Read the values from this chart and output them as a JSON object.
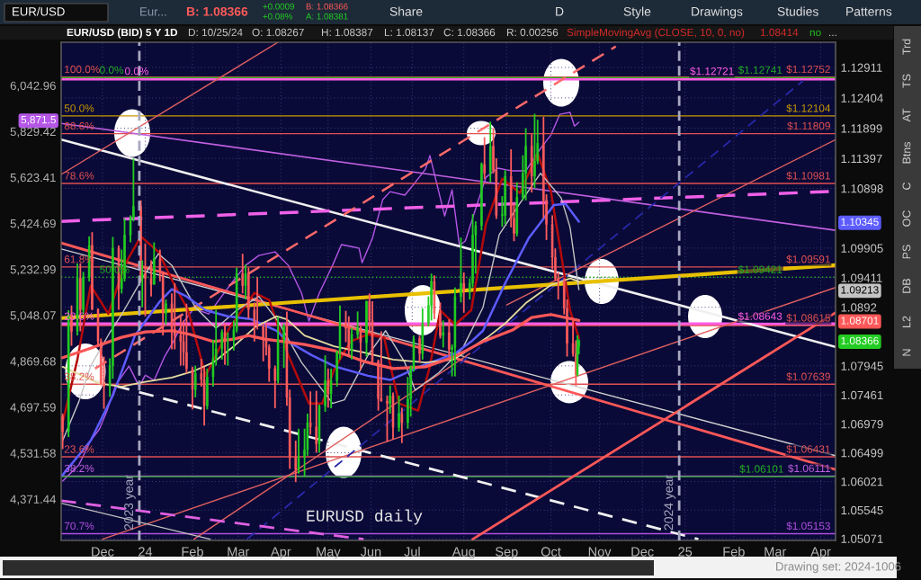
{
  "chart_data": {
    "type": "candlestick",
    "title": "EUR/USD (BID) 5 Y 1D",
    "xlim": [
      "2023-11-09",
      "2025-04-17"
    ],
    "xticks": [
      {
        "value": "2023-12-07",
        "label": "Dec"
      },
      {
        "value": "2024-01-05",
        "label": "24"
      },
      {
        "value": "2024-02-06",
        "label": "Feb"
      },
      {
        "value": "2024-03-08",
        "label": "Mar"
      },
      {
        "value": "2024-04-06",
        "label": "Apr"
      },
      {
        "value": "2024-05-08",
        "label": "May"
      },
      {
        "value": "2024-06-06",
        "label": "Jun"
      },
      {
        "value": "2024-07-04",
        "label": "Jul"
      },
      {
        "value": "2024-08-08",
        "label": "Aug"
      },
      {
        "value": "2024-09-06",
        "label": "Sep"
      },
      {
        "value": "2024-10-06",
        "label": "Oct"
      },
      {
        "value": "2024-11-08",
        "label": "Nov"
      },
      {
        "value": "2024-12-07",
        "label": "Dec"
      },
      {
        "value": "2025-01-05",
        "label": "25"
      },
      {
        "value": "2025-02-07",
        "label": "Feb"
      },
      {
        "value": "2025-03-07",
        "label": "Mar"
      },
      {
        "value": "2025-04-07",
        "label": "Apr"
      }
    ],
    "ylim": [
      1.0504,
      1.1333
    ],
    "yticks": [
      1.12911,
      1.12404,
      1.11899,
      1.11397,
      1.10898,
      1.10345,
      1.09905,
      1.09411,
      1.09213,
      1.0892,
      1.08701,
      1.08366,
      1.07945,
      1.07461,
      1.06979,
      1.06499,
      1.06021,
      1.05545,
      1.05071
    ],
    "y2lim": [
      4232,
      6251
    ],
    "y2ticks": [
      {
        "value": 6042.96,
        "label": "6,042.96"
      },
      {
        "value": 5871.5,
        "label": "5,871.5"
      },
      {
        "value": 5829.42,
        "label": "5,829.42"
      },
      {
        "value": 5623.41,
        "label": "5,623.41"
      },
      {
        "value": 5424.69,
        "label": "5,424.69"
      },
      {
        "value": 5232.99,
        "label": "5,232.99"
      },
      {
        "value": 5048.07,
        "label": "5,048.07"
      },
      {
        "value": 4869.68,
        "label": "4,869.68"
      },
      {
        "value": 4697.59,
        "label": "4,697.59"
      },
      {
        "value": 4531.58,
        "label": "4,531.58"
      },
      {
        "value": 4371.44,
        "label": "4,371.44"
      }
    ],
    "log": "y2",
    "grid": true,
    "series": [
      {
        "x": [
          "2023-11-10",
          "2023-11-14",
          "2023-11-16",
          "2023-11-20",
          "2023-11-22",
          "2023-11-24",
          "2023-11-28",
          "2023-11-30",
          "2023-12-04",
          "2023-12-06",
          "2023-12-08",
          "2023-12-12",
          "2023-12-14",
          "2023-12-18",
          "2023-12-20",
          "2023-12-22",
          "2023-12-26",
          "2023-12-28",
          "2024-01-02",
          "2024-01-03",
          "2024-01-05",
          "2024-01-09",
          "2024-01-11",
          "2024-01-15",
          "2024-01-17",
          "2024-01-19",
          "2024-01-23",
          "2024-01-25",
          "2024-01-29",
          "2024-01-31",
          "2024-02-02",
          "2024-02-06",
          "2024-02-08",
          "2024-02-12",
          "2024-02-14",
          "2024-02-16",
          "2024-02-20",
          "2024-02-22",
          "2024-02-26",
          "2024-02-28",
          "2024-03-01",
          "2024-03-05",
          "2024-03-07",
          "2024-03-11",
          "2024-03-13",
          "2024-03-15",
          "2024-03-19",
          "2024-03-21",
          "2024-03-25",
          "2024-03-27",
          "2024-03-29",
          "2024-04-02",
          "2024-04-04",
          "2024-04-08",
          "2024-04-10",
          "2024-04-12",
          "2024-04-16",
          "2024-04-18",
          "2024-04-22",
          "2024-04-24",
          "2024-04-26",
          "2024-04-30",
          "2024-05-02",
          "2024-05-06",
          "2024-05-08",
          "2024-05-10",
          "2024-05-14",
          "2024-05-16",
          "2024-05-20",
          "2024-05-22",
          "2024-05-24",
          "2024-05-28",
          "2024-05-30",
          "2024-06-03",
          "2024-06-05",
          "2024-06-07",
          "2024-06-11",
          "2024-06-13",
          "2024-06-17",
          "2024-06-19",
          "2024-06-21",
          "2024-06-25",
          "2024-06-27",
          "2024-07-01",
          "2024-07-03",
          "2024-07-05",
          "2024-07-09",
          "2024-07-11",
          "2024-07-15",
          "2024-07-17",
          "2024-07-19",
          "2024-07-23",
          "2024-07-25",
          "2024-07-29",
          "2024-07-31",
          "2024-08-02",
          "2024-08-06",
          "2024-08-08",
          "2024-08-12",
          "2024-08-14",
          "2024-08-16",
          "2024-08-20",
          "2024-08-22",
          "2024-08-26",
          "2024-08-28",
          "2024-08-30",
          "2024-09-03",
          "2024-09-05",
          "2024-09-09",
          "2024-09-11",
          "2024-09-13",
          "2024-09-17",
          "2024-09-19",
          "2024-09-23",
          "2024-09-25",
          "2024-09-27",
          "2024-10-01",
          "2024-10-03",
          "2024-10-07",
          "2024-10-09",
          "2024-10-11",
          "2024-10-15",
          "2024-10-17",
          "2024-10-21",
          "2024-10-23",
          "2024-10-24",
          "2024-10-25"
        ],
        "ohlc": [
          [
            1.071,
            1.0715,
            1.0656,
            1.0685
          ],
          [
            1.0685,
            1.0887,
            1.0676,
            1.088
          ],
          [
            1.088,
            1.0895,
            1.0828,
            1.0852
          ],
          [
            1.0852,
            1.0965,
            1.0845,
            1.094
          ],
          [
            1.094,
            1.0965,
            1.0852,
            1.0888
          ],
          [
            1.0888,
            1.0951,
            1.088,
            1.0942
          ],
          [
            1.0942,
            1.101,
            1.0935,
            1.0995
          ],
          [
            1.0995,
            1.1017,
            1.0887,
            1.0889
          ],
          [
            1.0889,
            1.089,
            1.083,
            1.0835
          ],
          [
            1.0835,
            1.084,
            1.0762,
            1.0764
          ],
          [
            1.0764,
            1.081,
            1.0723,
            1.076
          ],
          [
            1.076,
            1.0807,
            1.0743,
            1.0795
          ],
          [
            1.0795,
            1.1009,
            1.0773,
            1.099
          ],
          [
            1.099,
            1.0995,
            1.0888,
            1.0923
          ],
          [
            1.0923,
            1.0988,
            1.0915,
            1.094
          ],
          [
            1.094,
            1.104,
            1.0935,
            1.1012
          ],
          [
            1.1012,
            1.1045,
            1.1,
            1.1041
          ],
          [
            1.1041,
            1.1139,
            1.1035,
            1.106
          ],
          [
            1.106,
            1.107,
            1.0935,
            1.094
          ],
          [
            1.094,
            1.097,
            1.0892,
            1.0948
          ],
          [
            1.0948,
            1.0998,
            1.0877,
            1.094
          ],
          [
            1.094,
            1.097,
            1.091,
            1.093
          ],
          [
            1.093,
            1.1,
            1.093,
            1.0973
          ],
          [
            1.0973,
            1.0988,
            1.0935,
            1.095
          ],
          [
            1.095,
            1.0952,
            1.0845,
            1.0882
          ],
          [
            1.0882,
            1.0905,
            1.0863,
            1.0898
          ],
          [
            1.0898,
            1.0915,
            1.0822,
            1.0856
          ],
          [
            1.0856,
            1.0932,
            1.0822,
            1.0845
          ],
          [
            1.0845,
            1.0877,
            1.0795,
            1.0835
          ],
          [
            1.0835,
            1.087,
            1.0795,
            1.0817
          ],
          [
            1.0817,
            1.0898,
            1.0782,
            1.079
          ],
          [
            1.079,
            1.0793,
            1.0722,
            1.0755
          ],
          [
            1.0755,
            1.0795,
            1.0742,
            1.0782
          ],
          [
            1.0782,
            1.0806,
            1.076,
            1.0772
          ],
          [
            1.0772,
            1.0793,
            1.0695,
            1.0728
          ],
          [
            1.0728,
            1.079,
            1.0722,
            1.0776
          ],
          [
            1.0776,
            1.0838,
            1.076,
            1.0808
          ],
          [
            1.0808,
            1.0888,
            1.0795,
            1.0823
          ],
          [
            1.0823,
            1.0855,
            1.0805,
            1.085
          ],
          [
            1.085,
            1.0865,
            1.0796,
            1.0838
          ],
          [
            1.0838,
            1.085,
            1.0795,
            1.0838
          ],
          [
            1.0838,
            1.087,
            1.082,
            1.0855
          ],
          [
            1.0855,
            1.0958,
            1.085,
            1.0948
          ],
          [
            1.0948,
            1.0981,
            1.0915,
            1.0928
          ],
          [
            1.0928,
            1.0963,
            1.0905,
            1.0948
          ],
          [
            1.0948,
            1.0958,
            1.0873,
            1.0888
          ],
          [
            1.0888,
            1.09,
            1.0835,
            1.0865
          ],
          [
            1.0865,
            1.0942,
            1.0855,
            1.086
          ],
          [
            1.086,
            1.0865,
            1.0802,
            1.0838
          ],
          [
            1.0838,
            1.0865,
            1.0812,
            1.0825
          ],
          [
            1.0825,
            1.083,
            1.0768,
            1.079
          ],
          [
            1.079,
            1.0795,
            1.0724,
            1.077
          ],
          [
            1.077,
            1.0876,
            1.0765,
            1.0838
          ],
          [
            1.0838,
            1.0865,
            1.0791,
            1.086
          ],
          [
            1.086,
            1.0885,
            1.0728,
            1.0742
          ],
          [
            1.0742,
            1.0755,
            1.0623,
            1.0642
          ],
          [
            1.0642,
            1.067,
            1.0601,
            1.0622
          ],
          [
            1.0622,
            1.069,
            1.0615,
            1.0643
          ],
          [
            1.0643,
            1.069,
            1.061,
            1.0655
          ],
          [
            1.0655,
            1.0715,
            1.0645,
            1.07
          ],
          [
            1.07,
            1.0752,
            1.068,
            1.0693
          ],
          [
            1.0693,
            1.0753,
            1.065,
            1.0665
          ],
          [
            1.0665,
            1.073,
            1.065,
            1.0728
          ],
          [
            1.0728,
            1.0812,
            1.0718,
            1.077
          ],
          [
            1.077,
            1.079,
            1.0725,
            1.0748
          ],
          [
            1.0748,
            1.079,
            1.0724,
            1.077
          ],
          [
            1.077,
            1.082,
            1.076,
            1.0818
          ],
          [
            1.0818,
            1.0895,
            1.0805,
            1.0866
          ],
          [
            1.0866,
            1.0886,
            1.0834,
            1.0857
          ],
          [
            1.0857,
            1.0877,
            1.0812,
            1.082
          ],
          [
            1.082,
            1.0858,
            1.0805,
            1.0847
          ],
          [
            1.0847,
            1.0885,
            1.084,
            1.0857
          ],
          [
            1.0857,
            1.086,
            1.0788,
            1.0833
          ],
          [
            1.0833,
            1.0903,
            1.081,
            1.0902
          ],
          [
            1.0902,
            1.0915,
            1.085,
            1.087
          ],
          [
            1.087,
            1.0902,
            1.08,
            1.0802
          ],
          [
            1.0802,
            1.0805,
            1.072,
            1.074
          ],
          [
            1.074,
            1.0852,
            1.0735,
            1.0736
          ],
          [
            1.0736,
            1.0745,
            1.0668,
            1.0732
          ],
          [
            1.0732,
            1.0762,
            1.0715,
            1.0745
          ],
          [
            1.0745,
            1.075,
            1.0672,
            1.0692
          ],
          [
            1.0692,
            1.0745,
            1.0685,
            1.0715
          ],
          [
            1.0715,
            1.0725,
            1.0666,
            1.07
          ],
          [
            1.07,
            1.0776,
            1.069,
            1.074
          ],
          [
            1.074,
            1.0795,
            1.071,
            1.079
          ],
          [
            1.079,
            1.0845,
            1.0785,
            1.084
          ],
          [
            1.084,
            1.0845,
            1.08,
            1.0815
          ],
          [
            1.0815,
            1.089,
            1.0805,
            1.0865
          ],
          [
            1.0865,
            1.091,
            1.086,
            1.0895
          ],
          [
            1.0895,
            1.0948,
            1.087,
            1.0935
          ],
          [
            1.0935,
            1.0945,
            1.0872,
            1.0882
          ],
          [
            1.0882,
            1.09,
            1.084,
            1.0845
          ],
          [
            1.0845,
            1.087,
            1.0825,
            1.085
          ],
          [
            1.085,
            1.0872,
            1.081,
            1.0822
          ],
          [
            1.0822,
            1.083,
            1.0777,
            1.0825
          ],
          [
            1.0825,
            1.0925,
            1.0777,
            1.091
          ],
          [
            1.091,
            1.1008,
            1.09,
            1.0932
          ],
          [
            1.0932,
            1.095,
            1.0883,
            1.092
          ],
          [
            1.092,
            1.094,
            1.0905,
            1.0932
          ],
          [
            1.0932,
            1.1047,
            1.0925,
            1.1012
          ],
          [
            1.1012,
            1.1035,
            1.0948,
            1.1028
          ],
          [
            1.1028,
            1.1133,
            1.102,
            1.113
          ],
          [
            1.113,
            1.1175,
            1.1105,
            1.1115
          ],
          [
            1.1115,
            1.1201,
            1.11,
            1.116
          ],
          [
            1.116,
            1.119,
            1.1115,
            1.112
          ],
          [
            1.112,
            1.114,
            1.1039,
            1.1045
          ],
          [
            1.1045,
            1.1077,
            1.1026,
            1.1045
          ],
          [
            1.1045,
            1.112,
            1.103,
            1.111
          ],
          [
            1.111,
            1.1155,
            1.1025,
            1.104
          ],
          [
            1.104,
            1.1065,
            1.1002,
            1.1015
          ],
          [
            1.1015,
            1.11,
            1.101,
            1.1075
          ],
          [
            1.1075,
            1.1145,
            1.107,
            1.1115
          ],
          [
            1.1115,
            1.119,
            1.107,
            1.116
          ],
          [
            1.116,
            1.118,
            1.1083,
            1.111
          ],
          [
            1.111,
            1.1214,
            1.109,
            1.1135
          ],
          [
            1.1135,
            1.1204,
            1.113,
            1.1165
          ],
          [
            1.1165,
            1.1209,
            1.104,
            1.107
          ],
          [
            1.107,
            1.108,
            1.1004,
            1.103
          ],
          [
            1.103,
            1.1045,
            1.0955,
            1.0975
          ],
          [
            1.0975,
            1.099,
            1.0935,
            1.094
          ],
          [
            1.094,
            1.095,
            1.0905,
            1.0935
          ],
          [
            1.0935,
            1.094,
            1.088,
            1.089
          ],
          [
            1.089,
            1.0905,
            1.081,
            1.0832
          ],
          [
            1.0832,
            1.087,
            1.081,
            1.0815
          ],
          [
            1.0815,
            1.0837,
            1.0761,
            1.078
          ],
          [
            1.078,
            1.0845,
            1.0777,
            1.0827
          ],
          [
            1.08267,
            1.08387,
            1.08137,
            1.08366
          ]
        ],
        "colors": [
          "#ff5c5c",
          "#22cc22",
          "#ff5c5c",
          "#22cc22",
          "#ff5c5c",
          "#22cc22",
          "#22cc22",
          "#ff5c5c",
          "#ff5c5c",
          "#ff5c5c",
          "#ff5c5c",
          "#22cc22",
          "#22cc22",
          "#ff5c5c",
          "#22cc22",
          "#22cc22",
          "#22cc22",
          "#22cc22",
          "#ff5c5c",
          "#22cc22",
          "#ff5c5c",
          "#ff5c5c",
          "#22cc22",
          "#ff5c5c",
          "#ff5c5c",
          "#22cc22",
          "#ff5c5c",
          "#ff5c5c",
          "#ff5c5c",
          "#ff5c5c",
          "#ff5c5c",
          "#ff5c5c",
          "#22cc22",
          "#ff5c5c",
          "#ff5c5c",
          "#22cc22",
          "#22cc22",
          "#22cc22",
          "#22cc22",
          "#ff5c5c",
          "#22cc22",
          "#22cc22",
          "#22cc22",
          "#ff5c5c",
          "#22cc22",
          "#ff5c5c",
          "#ff5c5c",
          "#ff5c5c",
          "#ff5c5c",
          "#ff5c5c",
          "#ff5c5c",
          "#ff5c5c",
          "#22cc22",
          "#22cc22",
          "#ff5c5c",
          "#ff5c5c",
          "#ff5c5c",
          "#22cc22",
          "#22cc22",
          "#22cc22",
          "#ff5c5c",
          "#ff5c5c",
          "#22cc22",
          "#22cc22",
          "#ff5c5c",
          "#22cc22",
          "#22cc22",
          "#22cc22",
          "#ff5c5c",
          "#ff5c5c",
          "#22cc22",
          "#22cc22",
          "#ff5c5c",
          "#22cc22",
          "#ff5c5c",
          "#ff5c5c",
          "#ff5c5c",
          "#ff5c5c",
          "#ff5c5c",
          "#22cc22",
          "#ff5c5c",
          "#22cc22",
          "#ff5c5c",
          "#22cc22",
          "#22cc22",
          "#22cc22",
          "#ff5c5c",
          "#22cc22",
          "#22cc22",
          "#22cc22",
          "#ff5c5c",
          "#ff5c5c",
          "#22cc22",
          "#ff5c5c",
          "#22cc22",
          "#22cc22",
          "#22cc22",
          "#ff5c5c",
          "#22cc22",
          "#22cc22",
          "#22cc22",
          "#22cc22",
          "#ff5c5c",
          "#22cc22",
          "#ff5c5c",
          "#ff5c5c",
          "#22cc22",
          "#22cc22",
          "#ff5c5c",
          "#ff5c5c",
          "#22cc22",
          "#22cc22",
          "#22cc22",
          "#ff5c5c",
          "#22cc22",
          "#22cc22",
          "#ff5c5c",
          "#ff5c5c",
          "#ff5c5c",
          "#ff5c5c",
          "#ff5c5c",
          "#ff5c5c",
          "#ff5c5c",
          "#ff5c5c",
          "#ff5c5c",
          "#22cc22",
          "#22cc22"
        ]
      },
      {
        "type": "line",
        "color": "#b40a0a",
        "x": [
          "2023-11-10",
          "2023-11-20",
          "2023-11-29",
          "2023-12-11",
          "2023-12-22",
          "2024-01-02",
          "2024-01-14",
          "2024-01-23",
          "2024-02-03",
          "2024-02-15",
          "2024-03-02",
          "2024-03-19",
          "2024-03-29",
          "2024-04-11",
          "2024-04-25",
          "2024-05-04",
          "2024-05-12",
          "2024-05-23",
          "2024-06-04",
          "2024-06-15",
          "2024-06-25",
          "2024-07-08",
          "2024-07-16",
          "2024-07-23",
          "2024-08-02",
          "2024-08-13",
          "2024-08-23",
          "2024-09-03",
          "2024-09-15",
          "2024-09-27",
          "2024-10-06",
          "2024-10-12",
          "2024-10-19",
          "2024-10-25"
        ],
        "values": [
          1.07,
          1.0805,
          1.0928,
          1.0881,
          1.0962,
          1.101,
          1.0984,
          1.0938,
          1.0887,
          1.0778,
          1.0857,
          1.0916,
          1.0904,
          1.0812,
          1.0732,
          1.0732,
          1.0788,
          1.0835,
          1.0847,
          1.0841,
          1.0732,
          1.072,
          1.0794,
          1.0887,
          1.0863,
          1.0887,
          1.1031,
          1.1106,
          1.1082,
          1.1148,
          1.1085,
          1.0995,
          1.0887,
          1.0841
        ]
      },
      {
        "type": "line",
        "color": "#c4c4c4",
        "x": [
          "2023-11-10",
          "2023-11-21",
          "2023-11-29",
          "2023-12-12",
          "2023-12-20",
          "2024-01-04",
          "2024-01-14",
          "2024-01-23",
          "2024-02-08",
          "2024-02-22",
          "2024-03-07",
          "2024-03-22",
          "2024-04-04",
          "2024-04-20",
          "2024-05-11",
          "2024-05-19",
          "2024-06-04",
          "2024-06-16",
          "2024-06-29",
          "2024-07-06",
          "2024-07-22",
          "2024-08-07",
          "2024-08-21",
          "2024-09-01",
          "2024-09-15",
          "2024-09-29",
          "2024-10-13",
          "2024-10-19",
          "2024-10-25"
        ],
        "values": [
          1.067,
          1.0735,
          1.0794,
          1.085,
          1.088,
          1.0944,
          1.0981,
          1.0962,
          1.0892,
          1.0857,
          1.0887,
          1.091,
          1.0869,
          1.08,
          1.0732,
          1.0738,
          1.0812,
          1.0853,
          1.08,
          1.0754,
          1.0783,
          1.0823,
          1.0892,
          1.1013,
          1.1065,
          1.1115,
          1.1074,
          1.1025,
          1.09213
        ]
      },
      {
        "type": "line",
        "color": "#5c5cff",
        "x": [
          "2023-11-10",
          "2023-11-29",
          "2023-12-14",
          "2023-12-29",
          "2024-01-15",
          "2024-01-23",
          "2024-02-02",
          "2024-02-15",
          "2024-03-01",
          "2024-03-17",
          "2024-04-03",
          "2024-04-11",
          "2024-04-27",
          "2024-05-12",
          "2024-06-04",
          "2024-06-19",
          "2024-06-30",
          "2024-07-10",
          "2024-08-02",
          "2024-08-13",
          "2024-08-21",
          "2024-09-05",
          "2024-09-21",
          "2024-10-08",
          "2024-10-16",
          "2024-10-25"
        ],
        "values": [
          1.0613,
          1.067,
          1.0745,
          1.0845,
          1.0902,
          1.0922,
          1.091,
          1.0887,
          1.0877,
          1.0872,
          1.0853,
          1.0835,
          1.0812,
          1.0794,
          1.0778,
          1.0771,
          1.0783,
          1.0794,
          1.0815,
          1.0835,
          1.0853,
          1.0932,
          1.1007,
          1.1062,
          1.1064,
          1.10345
        ]
      },
      {
        "type": "line",
        "color": "#e4dba0",
        "x": [
          "2023-11-10",
          "2023-12-05",
          "2023-12-20",
          "2024-01-05",
          "2024-01-23",
          "2024-02-07",
          "2024-02-20",
          "2024-03-05",
          "2024-03-20",
          "2024-04-03",
          "2024-04-10",
          "2024-04-22",
          "2024-05-12",
          "2024-06-01",
          "2024-06-21",
          "2024-07-13",
          "2024-08-01",
          "2024-08-24",
          "2024-09-05",
          "2024-09-19",
          "2024-10-06",
          "2024-10-19",
          "2024-10-25"
        ],
        "values": [
          1.0793,
          1.0765,
          1.076,
          1.0768,
          1.0775,
          1.0786,
          1.08,
          1.0827,
          1.086,
          1.0877,
          1.0872,
          1.0845,
          1.0827,
          1.0817,
          1.0805,
          1.08,
          1.0805,
          1.0842,
          1.0865,
          1.0899,
          1.0929,
          1.094,
          1.0935
        ]
      },
      {
        "type": "line",
        "color": "#ff5858",
        "x": [
          "2023-11-10",
          "2023-11-29",
          "2023-12-20",
          "2024-01-05",
          "2024-01-23",
          "2024-02-04",
          "2024-02-20",
          "2024-03-05",
          "2024-03-15",
          "2024-03-26",
          "2024-04-08",
          "2024-04-22",
          "2024-05-12",
          "2024-06-01",
          "2024-06-21",
          "2024-07-13",
          "2024-08-01",
          "2024-08-21",
          "2024-09-10",
          "2024-09-23",
          "2024-10-06",
          "2024-10-25"
        ],
        "values": [
          1.0808,
          1.0824,
          1.0842,
          1.0851,
          1.0853,
          1.0847,
          1.0835,
          1.0839,
          1.0845,
          1.0839,
          1.0835,
          1.083,
          1.082,
          1.0802,
          1.079,
          1.0793,
          1.0809,
          1.0835,
          1.0854,
          1.0875,
          1.088,
          1.08701
        ]
      },
      {
        "type": "line",
        "color": "#b457e6",
        "axis": "y2",
        "x": [
          "2023-11-10",
          "2023-11-21",
          "2023-11-29",
          "2023-12-05",
          "2023-12-10",
          "2023-12-16",
          "2023-12-25",
          "2024-01-01",
          "2024-01-05",
          "2024-01-11",
          "2024-01-18",
          "2024-01-24",
          "2024-01-30",
          "2024-02-07",
          "2024-02-17",
          "2024-03-02",
          "2024-03-13",
          "2024-03-22",
          "2024-04-02",
          "2024-04-11",
          "2024-04-20",
          "2024-04-25",
          "2024-05-02",
          "2024-05-11",
          "2024-05-17",
          "2024-05-29",
          "2024-05-31",
          "2024-06-07",
          "2024-06-14",
          "2024-06-19",
          "2024-06-29",
          "2024-07-06",
          "2024-07-13",
          "2024-07-16",
          "2024-07-20",
          "2024-07-26",
          "2024-07-31",
          "2024-08-05",
          "2024-08-09",
          "2024-08-17",
          "2024-08-23",
          "2024-08-31",
          "2024-09-10",
          "2024-09-19",
          "2024-09-29",
          "2024-10-06",
          "2024-10-12",
          "2024-10-19",
          "2024-10-22",
          "2024-10-25"
        ],
        "values": [
          4433,
          4490,
          4576,
          4618,
          4683,
          4780,
          4851,
          4773,
          4817,
          4797,
          4886,
          4944,
          5014,
          5075,
          5053,
          5165,
          5249,
          5290,
          5305,
          5249,
          5136,
          5025,
          5136,
          5249,
          5335,
          5320,
          5260,
          5361,
          5526,
          5561,
          5546,
          5601,
          5660,
          5720,
          5613,
          5456,
          5569,
          5331,
          5350,
          5507,
          5624,
          5664,
          5652,
          5652,
          5752,
          5813,
          5908,
          5917,
          5854,
          5871.5
        ]
      },
      {
        "type": "line",
        "color": "#f0f0f0",
        "x": [
          "2023-11-09",
          "2025-04-17"
        ],
        "values": [
          1.1171,
          1.0826
        ]
      },
      {
        "type": "line",
        "color": "#d0d0d0",
        "x": [
          "2023-11-09",
          "2025-04-17"
        ],
        "values": [
          1.0989,
          1.0645
        ]
      },
      {
        "type": "line",
        "color": "#ff5858",
        "x": [
          "2023-11-09",
          "2025-04-17"
        ],
        "values": [
          1.0999,
          1.0622
        ]
      },
      {
        "type": "line",
        "color": "#f0f0f0",
        "line_style": "dashed",
        "x": [
          "2023-11-29",
          "2025-01-14"
        ],
        "values": [
          1.0772,
          1.0506
        ]
      },
      {
        "type": "line",
        "color": "#f060e8",
        "line_style": "dashed",
        "x": [
          "2023-11-09",
          "2025-04-17"
        ],
        "values": [
          1.1035,
          1.1085
        ]
      },
      {
        "type": "line",
        "color": "#c060e0",
        "x": [
          "2023-11-09",
          "2025-04-17"
        ],
        "values": [
          1.1198,
          1.102
        ]
      },
      {
        "type": "line",
        "color": "#ff6a6a",
        "line_style": "dashed",
        "x": [
          "2023-12-02",
          "2024-11-19"
        ],
        "values": [
          1.079,
          1.1326
        ]
      },
      {
        "type": "line",
        "color": "#e06060",
        "x": [
          "2023-11-09",
          "2024-04-04"
        ],
        "values": [
          1.1113,
          1.1333
        ]
      },
      {
        "type": "line",
        "color": "#ff5858",
        "x": [
          "2024-08-14",
          "2025-04-17"
        ],
        "values": [
          1.0506,
          1.0883
        ]
      },
      {
        "type": "line",
        "color": "#e06060",
        "x": [
          "2023-12-07",
          "2025-04-17"
        ],
        "values": [
          1.0506,
          1.0925
        ]
      },
      {
        "type": "line",
        "color": "#e06060",
        "x": [
          "2024-02-07",
          "2024-08-12"
        ],
        "values": [
          1.0506,
          1.0815
        ]
      },
      {
        "type": "line",
        "color": "#e06060",
        "x": [
          "2024-09-06",
          "2025-04-17"
        ],
        "values": [
          1.0896,
          1.1171
        ]
      },
      {
        "type": "line",
        "color": "#2828a8",
        "line_style": "dashed",
        "x": [
          "2024-03-14",
          "2025-03-26"
        ],
        "values": [
          1.0506,
          1.1269
        ]
      },
      {
        "type": "line",
        "color": "#e060e0",
        "line_style": "dashed",
        "x": [
          "2023-11-09",
          "2024-06-01"
        ],
        "values": [
          1.057,
          1.0506
        ]
      },
      {
        "type": "line",
        "color": "#c0c0c0",
        "x": [
          "2023-11-09",
          "2024-02-18"
        ],
        "values": [
          1.0566,
          1.0506
        ]
      },
      {
        "type": "line",
        "color": "#e8c000",
        "x": [
          "2023-11-09",
          "2025-04-17"
        ],
        "values": [
          1.0874,
          1.0962
        ]
      }
    ],
    "ref_lines": [
      {
        "axis": "y",
        "value": 1.12752,
        "label": "$1.12752",
        "color": "#e05050"
      },
      {
        "axis": "y",
        "value": 1.12741,
        "label": "$1.12741",
        "color": "#22b022"
      },
      {
        "axis": "y",
        "value": 1.12721,
        "label": "$1.12721",
        "color": "#ff5ce6"
      },
      {
        "axis": "y",
        "value": 1.12104,
        "label": "$1.12104",
        "color": "#c89a00"
      },
      {
        "axis": "y",
        "value": 1.11809,
        "label": "$1.11809",
        "color": "#e05050"
      },
      {
        "axis": "y",
        "value": 1.10981,
        "label": "$1.10981",
        "color": "#e05050"
      },
      {
        "axis": "y",
        "value": 1.09591,
        "label": "$1.09591",
        "color": "#e05050"
      },
      {
        "axis": "y",
        "value": 1.09421,
        "label": "$1.09421",
        "color": "#22b022",
        "line_style": "dotted"
      },
      {
        "axis": "y",
        "value": 1.08615,
        "label": "$1.08615",
        "color": "#e05050"
      },
      {
        "axis": "y",
        "value": 1.08643,
        "label": "$1.08643",
        "color": "#ff5ce6"
      },
      {
        "axis": "y",
        "value": 1.07639,
        "label": "$1.07639",
        "color": "#e05050"
      },
      {
        "axis": "y",
        "value": 1.06431,
        "label": "$1.06431",
        "color": "#e05050"
      },
      {
        "axis": "y",
        "value": 1.06111,
        "label": "$1.06111",
        "color": "#c060e0"
      },
      {
        "axis": "y",
        "value": 1.06101,
        "label": "$1.06101",
        "color": "#22b022"
      },
      {
        "axis": "y",
        "value": 1.05153,
        "label": "$1.05153",
        "color": "#b050e0"
      },
      {
        "axis": "x",
        "value": "2024-01-01",
        "label": "2023 year",
        "color": "#a8a8c0",
        "line_style": "dashed"
      },
      {
        "axis": "x",
        "value": "2025-01-01",
        "label": "2024 year",
        "color": "#a8a8c0",
        "line_style": "dashed"
      }
    ],
    "annotations": [
      "D: 10/25/24",
      "O: 1.08267",
      "H: 1.08387",
      "L: 1.08137",
      "C: 1.08366",
      "R: 0.00256",
      "SimpleMovingAvg (CLOSE, 10, 0, no)",
      "1.08414",
      "no",
      "...",
      "EUR/USD",
      "Eur...",
      "B: 1.08366",
      "+0.0009",
      "+0.08%",
      "B: 1.08366",
      "A: 1.08381",
      "Share",
      "D",
      "Style",
      "Drawings",
      "Studies",
      "Patterns",
      "Trd",
      "TS",
      "AT",
      "Btns",
      "C",
      "OC",
      "PS",
      "DB",
      "L2",
      "N",
      "Drawing set: 2024-1006",
      "EURUSD daily",
      {
        "text": "100.0%",
        "x": "2023-11-11",
        "y": 1.12752
      },
      {
        "text": "0.0%",
        "x": "2023-12-05",
        "y": 1.12741
      },
      {
        "text": "0.0%",
        "x": "2023-12-22",
        "y": 1.12721
      },
      {
        "text": "50.0%",
        "x": "2023-11-11",
        "y": 1.12104
      },
      {
        "text": "88.6%",
        "x": "2023-11-11",
        "y": 1.11809
      },
      {
        "text": "78.6%",
        "x": "2023-11-11",
        "y": 1.10981
      },
      {
        "text": "61.8%",
        "x": "2023-11-11",
        "y": 1.09591
      },
      {
        "text": "50.0%",
        "x": "2023-12-05",
        "y": 1.09421
      },
      {
        "text": "23.6%",
        "x": "2023-11-11",
        "y": 1.08643
      },
      {
        "text": "38.2%",
        "x": "2023-11-11",
        "y": 1.07639
      },
      {
        "text": "23.6%",
        "x": "2023-11-11",
        "y": 1.06431
      },
      {
        "text": "38.2%",
        "x": "2023-11-11",
        "y": 1.06111
      },
      {
        "text": "70.7%",
        "x": "2023-11-11",
        "y": 1.05153
      }
    ]
  }
}
